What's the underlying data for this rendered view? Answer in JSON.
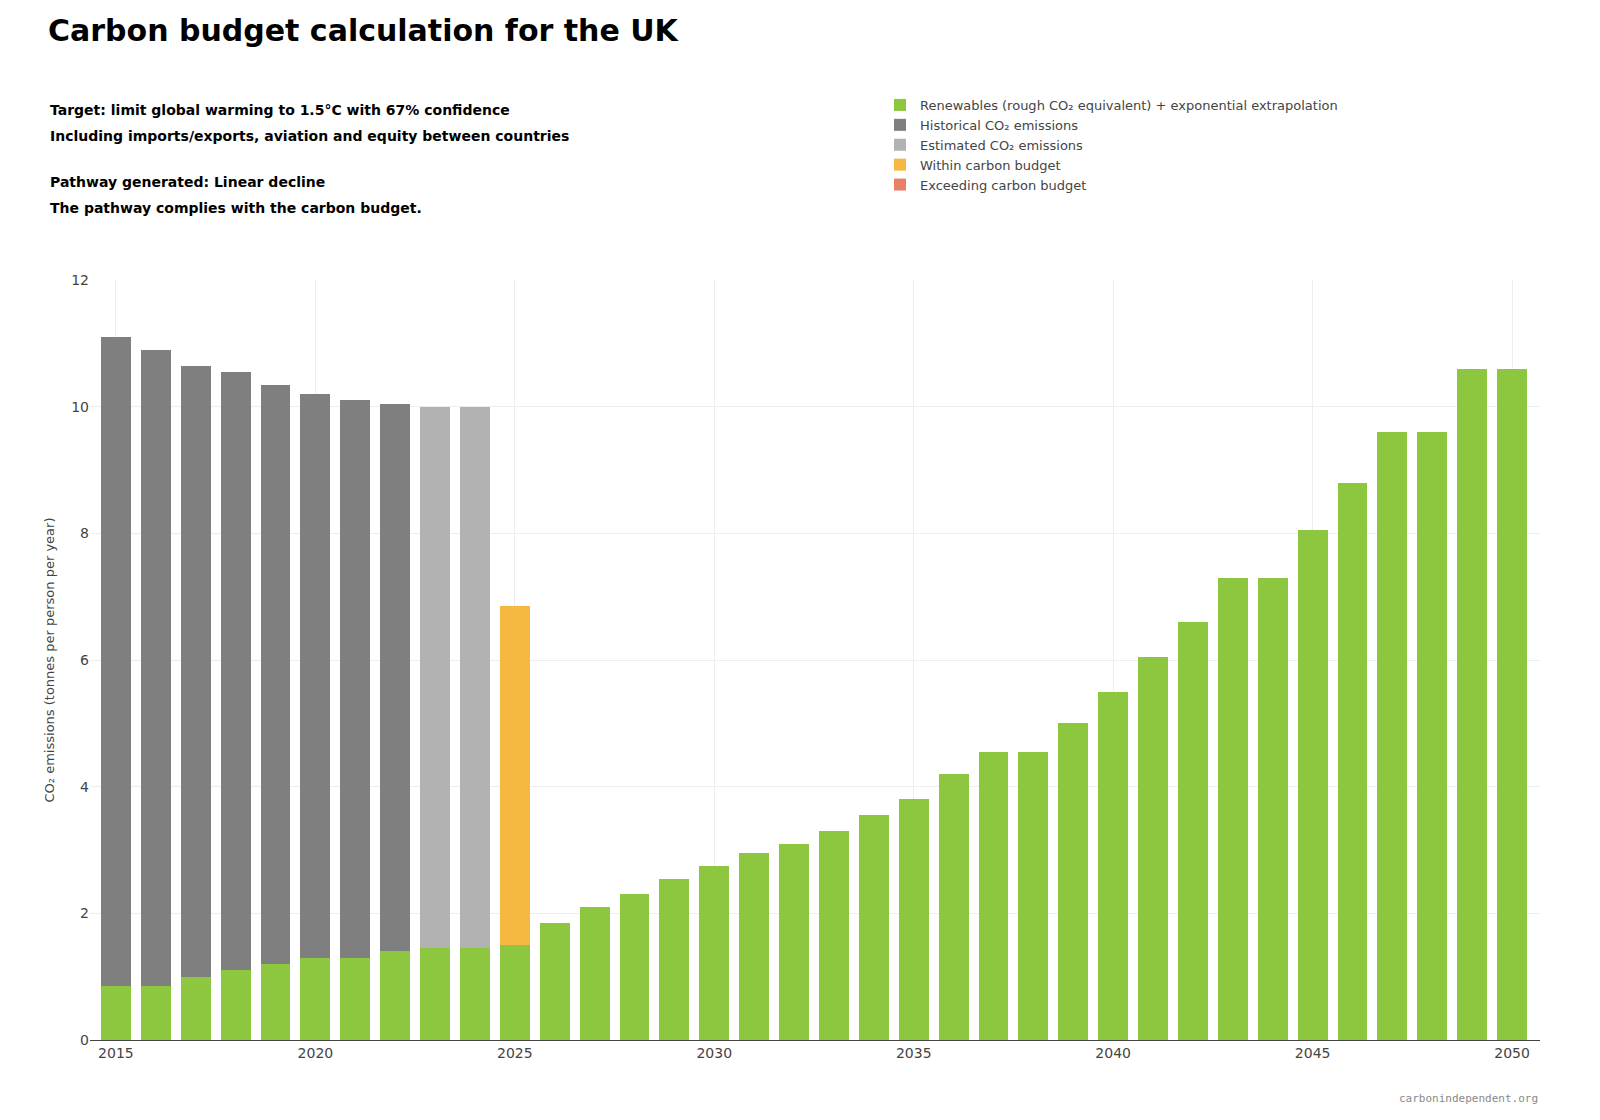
{
  "chart_data": {
    "type": "bar",
    "stacked": true,
    "title": "Carbon budget calculation for the UK",
    "subtitle": [
      "Target: limit global warming to 1.5°C with 67% confidence",
      "Including imports/exports, aviation and equity between countries",
      "Pathway generated: Linear decline",
      "The pathway complies with the carbon budget."
    ],
    "ylabel": "CO₂ emissions (tonnes per person per year)",
    "x": [
      2015,
      2016,
      2017,
      2018,
      2019,
      2020,
      2021,
      2022,
      2023,
      2024,
      2025,
      2026,
      2027,
      2028,
      2029,
      2030,
      2031,
      2032,
      2033,
      2034,
      2035,
      2036,
      2037,
      2038,
      2039,
      2040,
      2041,
      2042,
      2043,
      2044,
      2045,
      2046,
      2047,
      2048,
      2049,
      2050
    ],
    "series": [
      {
        "name": "Renewables (rough CO₂ equivalent) + exponential extrapolation",
        "color": "#8dc63f",
        "values": [
          0.85,
          0.85,
          1.0,
          1.1,
          1.2,
          1.3,
          1.3,
          1.4,
          1.45,
          1.45,
          1.5,
          1.85,
          2.1,
          2.3,
          2.55,
          2.75,
          2.95,
          3.1,
          3.3,
          3.55,
          3.8,
          4.2,
          4.55,
          4.55,
          5.0,
          5.5,
          6.05,
          6.6,
          7.3,
          7.3,
          8.05,
          8.8,
          9.6,
          9.6,
          10.6,
          10.6
        ]
      },
      {
        "name": "Historical CO₂ emissions",
        "color": "#7f7f7f",
        "values": [
          10.25,
          10.05,
          9.65,
          9.45,
          9.15,
          8.9,
          8.8,
          8.65,
          0,
          0,
          0,
          0,
          0,
          0,
          0,
          0,
          0,
          0,
          0,
          0,
          0,
          0,
          0,
          0,
          0,
          0,
          0,
          0,
          0,
          0,
          0,
          0,
          0,
          0,
          0,
          0
        ]
      },
      {
        "name": "Estimated CO₂ emissions",
        "color": "#b2b2b2",
        "values": [
          0,
          0,
          0,
          0,
          0,
          0,
          0,
          0,
          8.55,
          8.55,
          0,
          0,
          0,
          0,
          0,
          0,
          0,
          0,
          0,
          0,
          0,
          0,
          0,
          0,
          0,
          0,
          0,
          0,
          0,
          0,
          0,
          0,
          0,
          0,
          0,
          0
        ]
      },
      {
        "name": "Within carbon budget",
        "color": "#f5b942",
        "values": [
          0,
          0,
          0,
          0,
          0,
          0,
          0,
          0,
          0,
          0,
          5.35,
          0,
          0,
          0,
          0,
          0,
          0,
          0,
          0,
          0,
          0,
          0,
          0,
          0,
          0,
          0,
          0,
          0,
          0,
          0,
          0,
          0,
          0,
          0,
          0,
          0
        ]
      },
      {
        "name": "Exceeding carbon budget",
        "color": "#e8806a",
        "values": [
          0,
          0,
          0,
          0,
          0,
          0,
          0,
          0,
          0,
          0,
          0,
          0,
          0,
          0,
          0,
          0,
          0,
          0,
          0,
          0,
          0,
          0,
          0,
          0,
          0,
          0,
          0,
          0,
          0,
          0,
          0,
          0,
          0,
          0,
          0,
          0
        ]
      }
    ],
    "xlim": [
      2014.35,
      2050.7
    ],
    "xticks": [
      2015,
      2020,
      2025,
      2030,
      2035,
      2040,
      2045,
      2050
    ],
    "ylim": [
      0,
      12
    ],
    "yticks": [
      0,
      2,
      4,
      6,
      8,
      10,
      12
    ],
    "grid": true,
    "legend": "upper right",
    "annotations": [
      {
        "text": "carbonindependent.org"
      }
    ]
  }
}
